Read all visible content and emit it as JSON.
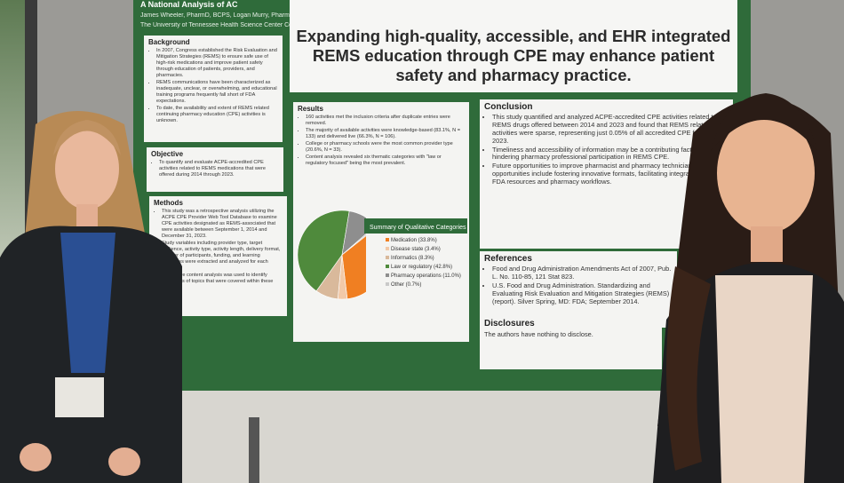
{
  "poster": {
    "title": "A National Analysis of AC",
    "authors": "James Wheeler, PharmD, BCPS, Logan Murry, PharmD, PhD, Hana Egawa",
    "affiliation": "The University of Tennessee Health Science Center College of Pharmacy",
    "headline": "Expanding high-quality, accessible, and EHR integrated REMS education through CPE may enhance patient safety and pharmacy practice.",
    "background": {
      "heading": "Background",
      "items": [
        "In 2007, Congress established the Risk Evaluation and Mitigation Strategies (REMS) to ensure safe use of high-risk medications and improve patient safety through education of patients, providers, and pharmacies.",
        "REMS communications have been characterized as inadequate, unclear, or overwhelming, and educational training programs frequently fall short of FDA expectations.",
        "To date, the availability and extent of REMS related continuing pharmacy education (CPE) activities is unknown."
      ]
    },
    "objective": {
      "heading": "Objective",
      "items": [
        "To quantify and evaluate ACPE-accredited CPE activities related to REMS medications that were offered during 2014 through 2023."
      ]
    },
    "methods": {
      "heading": "Methods",
      "items": [
        "This study was a retrospective analysis utilizing the ACPE CPE Provider Web Tool Database to examine CPE activities designated as REMS-associated that were available between September 1, 2014 and December 31, 2023.",
        "Study variables including provider type, target audience, activity type, activity length, delivery format, number of participants, funding, and learning objectives were extracted and analyzed for each activity.",
        "Qualitative content analysis was used to identify categories of topics that were covered within these activities."
      ]
    },
    "results": {
      "heading": "Results",
      "items": [
        "160 activities met the inclusion criteria after duplicate entries were removed.",
        "The majority of available activities were knowledge-based (83.1%, N = 133) and delivered live (66.3%, N = 106).",
        "College or pharmacy schools were the most common provider type (20.6%, N = 33).",
        "Content analysis revealed six thematic categories with \"law or regulatory focused\" being the most prevalent."
      ],
      "chart": {
        "type": "pie",
        "title": "Summary of Qualitative Categories",
        "categories": [
          "Medication (33.8%)",
          "Disease state (3.4%)",
          "Informatics (8.3%)",
          "Law or regulatory (42.8%)",
          "Pharmacy operations (11.0%)",
          "Other (0.7%)"
        ],
        "values": [
          33.8,
          3.4,
          8.3,
          42.8,
          11.0,
          0.7
        ],
        "colors": [
          "#f07f22",
          "#f2c9a8",
          "#d9b99b",
          "#4f8a3c",
          "#8e8e8e",
          "#c9c9c9"
        ]
      }
    },
    "conclusion": {
      "heading": "Conclusion",
      "items": [
        "This study quantified and analyzed ACPE-accredited CPE activities related to REMS drugs offered between 2014 and 2023 and found that REMS related CPE activities were sparse, representing just 0.05% of all accredited CPE from 2014–2023.",
        "Timeliness and accessibility of information may be a contributing factor that is hindering pharmacy professional participation in REMS CPE.",
        "Future opportunities to improve pharmacist and pharmacy technician CPE opportunities include fostering innovative formats, facilitating integration between FDA resources and pharmacy workflows."
      ]
    },
    "references": {
      "heading": "References",
      "items": [
        "Food and Drug Administration Amendments Act of 2007, Pub. L. No. 110-85, 121 Stat 823.",
        "U.S. Food and Drug Administration. Standardizing and Evaluating Risk Evaluation and Mitigation Strategies (REMS) (report). Silver Spring, MD: FDA; September 2014."
      ]
    },
    "disclosures": {
      "heading": "Disclosures",
      "text": "The authors have nothing to disclose."
    }
  }
}
